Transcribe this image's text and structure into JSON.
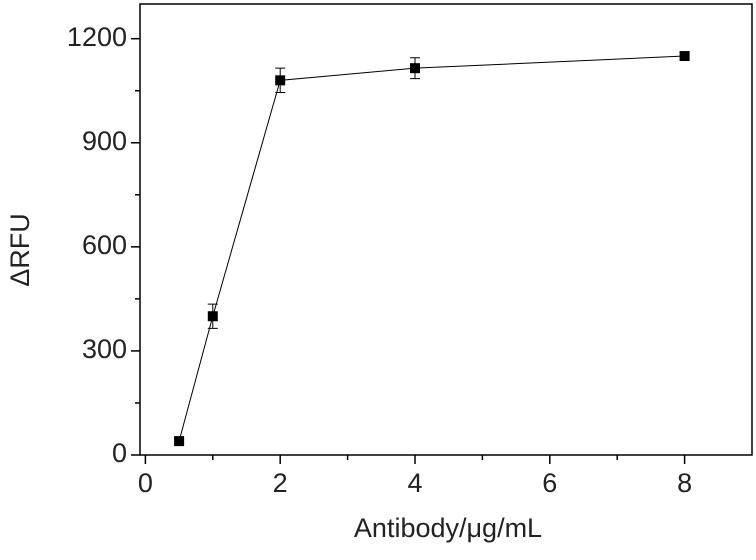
{
  "chart_data": {
    "type": "line",
    "x_label": "Antibody/μg/mL",
    "y_label": "ΔRFU",
    "x": [
      0.5,
      1,
      2,
      4,
      8
    ],
    "series": [
      {
        "color": "#000000",
        "values": [
          40,
          400,
          1080,
          1115,
          1150
        ],
        "errors": [
          5,
          35,
          35,
          30,
          10
        ]
      }
    ],
    "xlim": [
      -0.08,
      9
    ],
    "xticks": [
      0,
      2,
      4,
      6,
      8
    ],
    "xminorticks": [
      1,
      3,
      5,
      7
    ],
    "ylim": [
      0,
      1300
    ],
    "yticks": [
      0,
      300,
      600,
      900,
      1200
    ],
    "yminorticks": [
      150,
      450,
      750,
      1050
    ]
  }
}
